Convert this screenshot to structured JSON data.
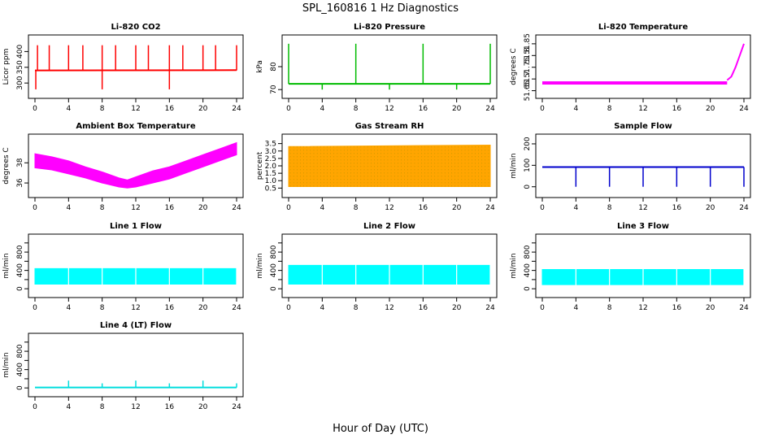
{
  "figure": {
    "title": "SPL_160816  1 Hz Diagnostics",
    "xlabel": "Hour of Day (UTC)"
  },
  "chart_data": [
    {
      "id": "co2",
      "type": "line",
      "title": "Li-820 CO2",
      "ylabel": "Licor ppm",
      "color": "#ff0000",
      "xlim": [
        0,
        24
      ],
      "ylim": [
        272,
        432
      ],
      "xticks": [
        0,
        4,
        8,
        12,
        16,
        20,
        24
      ],
      "yticks": [
        300,
        350,
        400
      ],
      "yticks_rotated": true,
      "series": [
        {
          "x": [
            0,
            24
          ],
          "values": [
            340,
            341
          ]
        }
      ],
      "spikes_up": [
        0.3,
        1.7,
        4.0,
        5.7,
        8.0,
        9.6,
        12.0,
        13.5,
        16.0,
        17.6,
        20.0,
        21.5,
        24.0
      ],
      "spikes_up_value": 420,
      "spikes_down": [
        0.1,
        8.0,
        16.0
      ],
      "spikes_down_value": 280
    },
    {
      "id": "pressure",
      "type": "line",
      "title": "Li-820 Pressure",
      "ylabel": "kPa",
      "color": "#00bb00",
      "xlim": [
        0,
        24
      ],
      "ylim": [
        69,
        91
      ],
      "xticks": [
        0,
        4,
        8,
        12,
        16,
        20,
        24
      ],
      "yticks": [
        70,
        80
      ],
      "yticks_rotated": true,
      "series": [
        {
          "x": [
            0,
            24
          ],
          "values": [
            72.5,
            72.5
          ]
        }
      ],
      "spikes_up": [
        0.0,
        8.0,
        16.0,
        24.0
      ],
      "spikes_up_value": 90,
      "spikes_down": [
        4.0,
        12.0,
        20.0
      ],
      "spikes_down_value": 70
    },
    {
      "id": "licor-temp",
      "type": "line",
      "title": "Li-820 Temperature",
      "ylabel": "degrees C",
      "color": "#ff00ff",
      "xlim": [
        0,
        24
      ],
      "ylim": [
        51.645,
        51.86
      ],
      "xticks": [
        0,
        4,
        8,
        12,
        16,
        20,
        24
      ],
      "yticks": [
        51.65,
        51.7,
        51.75,
        51.8,
        51.85
      ],
      "ytick_labels": [
        "51.65",
        "51.7",
        "51.75",
        "51.8",
        "51.85"
      ],
      "yticks_rotated": true,
      "band": {
        "x": [
          0,
          22.0
        ],
        "low": 51.68,
        "high": 51.69
      },
      "series": [
        {
          "x": [
            22.0,
            22.5,
            23.0,
            23.4,
            23.8,
            24.0
          ],
          "values": [
            51.695,
            51.71,
            51.75,
            51.79,
            51.83,
            51.85
          ]
        }
      ]
    },
    {
      "id": "box-temp",
      "type": "area",
      "title": "Ambient Box Temperature",
      "ylabel": "degrees C",
      "color": "#ff00ff",
      "xlim": [
        0,
        24
      ],
      "ylim": [
        35.2,
        40.2
      ],
      "xticks": [
        0,
        4,
        8,
        12,
        16,
        20,
        24
      ],
      "yticks": [
        36,
        38
      ],
      "yticks_rotated": true,
      "x": [
        0,
        2,
        4,
        6,
        8,
        10,
        11,
        12,
        14,
        16,
        18,
        20,
        22,
        24
      ],
      "upper": [
        38.9,
        38.6,
        38.2,
        37.6,
        37.1,
        36.5,
        36.3,
        36.6,
        37.2,
        37.6,
        38.2,
        38.8,
        39.4,
        40.0
      ],
      "lower": [
        37.5,
        37.3,
        36.9,
        36.5,
        36.0,
        35.6,
        35.5,
        35.6,
        36.0,
        36.4,
        37.0,
        37.6,
        38.2,
        38.8
      ]
    },
    {
      "id": "rh",
      "type": "area",
      "title": "Gas Stream RH",
      "ylabel": "percent",
      "color": "#ffa500",
      "dots_color": "#888800",
      "xlim": [
        0,
        24
      ],
      "ylim": [
        0.3,
        3.7
      ],
      "xticks": [
        0,
        4,
        8,
        12,
        16,
        20,
        24
      ],
      "yticks": [
        0.5,
        1.0,
        1.5,
        2.0,
        2.5,
        3.0,
        3.5
      ],
      "ytick_labels": [
        "0.5",
        "1.0",
        "1.5",
        "2.0",
        "2.5",
        "3.0",
        "3.5"
      ],
      "yticks_rotated": false,
      "x": [
        0,
        24
      ],
      "upper": [
        3.3,
        3.4
      ],
      "lower": [
        0.6,
        0.6
      ]
    },
    {
      "id": "sample-flow",
      "type": "line",
      "title": "Sample Flow",
      "ylabel": "ml/min",
      "color": "#0000cc",
      "xlim": [
        0,
        24
      ],
      "ylim": [
        -20,
        215
      ],
      "xticks": [
        0,
        4,
        8,
        12,
        16,
        20,
        24
      ],
      "yticks": [
        0,
        100,
        200
      ],
      "yticks_rotated": true,
      "series": [
        {
          "x": [
            0,
            24
          ],
          "values": [
            92,
            92
          ]
        }
      ],
      "spikes_down": [
        4.0,
        8.0,
        12.0,
        16.0,
        20.0,
        24.0
      ],
      "spikes_down_value": 0
    },
    {
      "id": "line1",
      "type": "area",
      "title": "Line 1 Flow",
      "ylabel": "ml/min",
      "color": "#00ffff",
      "xlim": [
        0,
        24
      ],
      "ylim": [
        -50,
        1050
      ],
      "xticks": [
        0,
        4,
        8,
        12,
        16,
        20,
        24
      ],
      "yticks": [
        0,
        200,
        400,
        600,
        800,
        1000
      ],
      "ytick_labels": [
        "0",
        "400",
        "800"
      ],
      "ytick_label_values": [
        0,
        400,
        800
      ],
      "yticks_rotated": true,
      "x": [
        0,
        24
      ],
      "upper": [
        440,
        440
      ],
      "lower": [
        100,
        100
      ],
      "gaps": [
        4,
        8,
        12,
        16,
        20,
        24
      ]
    },
    {
      "id": "line2",
      "type": "area",
      "title": "Line 2 Flow",
      "ylabel": "ml/min",
      "color": "#00ffff",
      "xlim": [
        0,
        24
      ],
      "ylim": [
        -50,
        1050
      ],
      "xticks": [
        0,
        4,
        8,
        12,
        16,
        20,
        24
      ],
      "yticks": [
        0,
        200,
        400,
        600,
        800,
        1000
      ],
      "ytick_labels": [
        "0",
        "400",
        "800"
      ],
      "ytick_label_values": [
        0,
        400,
        800
      ],
      "yticks_rotated": true,
      "x": [
        0,
        24
      ],
      "upper": [
        510,
        510
      ],
      "lower": [
        100,
        100
      ],
      "gaps": [
        4,
        8,
        12,
        16,
        20,
        24
      ]
    },
    {
      "id": "line3",
      "type": "area",
      "title": "Line 3 Flow",
      "ylabel": "ml/min",
      "color": "#00ffff",
      "xlim": [
        0,
        24
      ],
      "ylim": [
        -50,
        1050
      ],
      "xticks": [
        0,
        4,
        8,
        12,
        16,
        20,
        24
      ],
      "yticks": [
        0,
        200,
        400,
        600,
        800,
        1000
      ],
      "ytick_labels": [
        "0",
        "400",
        "800"
      ],
      "ytick_label_values": [
        0,
        400,
        800
      ],
      "yticks_rotated": true,
      "x": [
        0,
        24
      ],
      "upper": [
        420,
        420
      ],
      "lower": [
        90,
        90
      ],
      "gaps": [
        4,
        8,
        12,
        16,
        20,
        24
      ]
    },
    {
      "id": "line4",
      "type": "line",
      "title": "Line 4 (LT) Flow",
      "ylabel": "ml/min",
      "color": "#00dddd",
      "xlim": [
        0,
        24
      ],
      "ylim": [
        -50,
        1050
      ],
      "xticks": [
        0,
        4,
        8,
        12,
        16,
        20,
        24
      ],
      "yticks": [
        0,
        200,
        400,
        600,
        800,
        1000
      ],
      "ytick_labels": [
        "0",
        "400",
        "800"
      ],
      "ytick_label_values": [
        0,
        400,
        800
      ],
      "yticks_rotated": true,
      "series": [
        {
          "x": [
            0,
            24
          ],
          "values": [
            10,
            10
          ]
        }
      ],
      "spikes_up": [
        4.0,
        8.0,
        12.0,
        16.0,
        20.0,
        24.0
      ],
      "spikes_up_values": [
        160,
        100,
        160,
        100,
        160,
        100
      ]
    }
  ]
}
